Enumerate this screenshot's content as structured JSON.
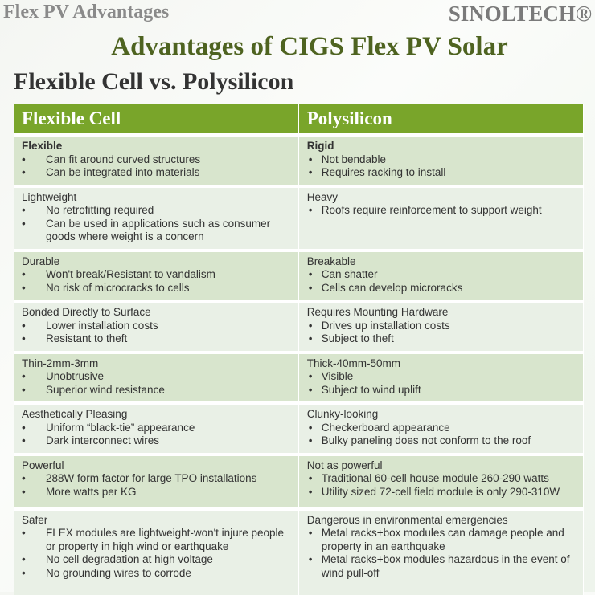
{
  "header": {
    "section": "Flex PV Advantages",
    "brand": "SINOLTECH®",
    "title": "Advantages of CIGS Flex PV Solar",
    "subtitle": "Flexible Cell vs. Polysilicon"
  },
  "table": {
    "columns": [
      "Flexible Cell",
      "Polysilicon"
    ],
    "rows": [
      {
        "left": {
          "heading": "Flexible",
          "bold": true,
          "items": [
            "Can fit around curved structures",
            "Can be integrated into materials"
          ]
        },
        "right": {
          "heading": "Rigid",
          "bold": true,
          "items": [
            "Not bendable",
            "Requires racking to install"
          ]
        }
      },
      {
        "left": {
          "heading": "Lightweight",
          "items": [
            "No retrofitting required",
            "Can be used in applications such as consumer goods where weight is a concern"
          ]
        },
        "right": {
          "heading": "Heavy",
          "items": [
            "Roofs require reinforcement to support weight"
          ]
        }
      },
      {
        "left": {
          "heading": "Durable",
          "items": [
            "Won't break/Resistant to vandalism",
            "No risk of microcracks to cells"
          ]
        },
        "right": {
          "heading": "Breakable",
          "items": [
            "Can shatter",
            "Cells can develop microracks"
          ]
        }
      },
      {
        "left": {
          "heading": "Bonded Directly to Surface",
          "items": [
            "Lower installation costs",
            "Resistant to theft"
          ]
        },
        "right": {
          "heading": "Requires Mounting Hardware",
          "items": [
            "Drives up installation costs",
            "Subject to theft"
          ]
        }
      },
      {
        "left": {
          "heading": "Thin-2mm-3mm",
          "items": [
            "Unobtrusive",
            "Superior wind resistance"
          ]
        },
        "right": {
          "heading": "Thick-40mm-50mm",
          "items": [
            "Visible",
            "Subject to wind uplift"
          ]
        }
      },
      {
        "left": {
          "heading": "Aesthetically Pleasing",
          "items": [
            "Uniform “black-tie” appearance",
            "Dark interconnect wires"
          ]
        },
        "right": {
          "heading": "Clunky-looking",
          "items": [
            "Checkerboard appearance",
            "Bulky paneling does not conform to the roof"
          ]
        }
      },
      {
        "left": {
          "heading": "Powerful",
          "items": [
            "288W form factor for large TPO installations",
            "More watts per KG"
          ]
        },
        "right": {
          "heading": "Not as powerful",
          "items": [
            "Traditional 60-cell house module 260-290 watts",
            "Utility sized 72-cell field module is only 290-310W"
          ]
        }
      },
      {
        "left": {
          "heading": "Safer",
          "items": [
            "FLEX modules are lightweight-won't injure people or property in high wind or earthquake",
            "No cell degradation at high voltage",
            "No grounding wires to corrode"
          ]
        },
        "right": {
          "heading": "Dangerous in environmental emergencies",
          "items": [
            "Metal racks+box modules can damage people and property in an earthquake",
            "Metal racks+box modules hazardous in the event of wind pull-off"
          ]
        }
      }
    ]
  }
}
